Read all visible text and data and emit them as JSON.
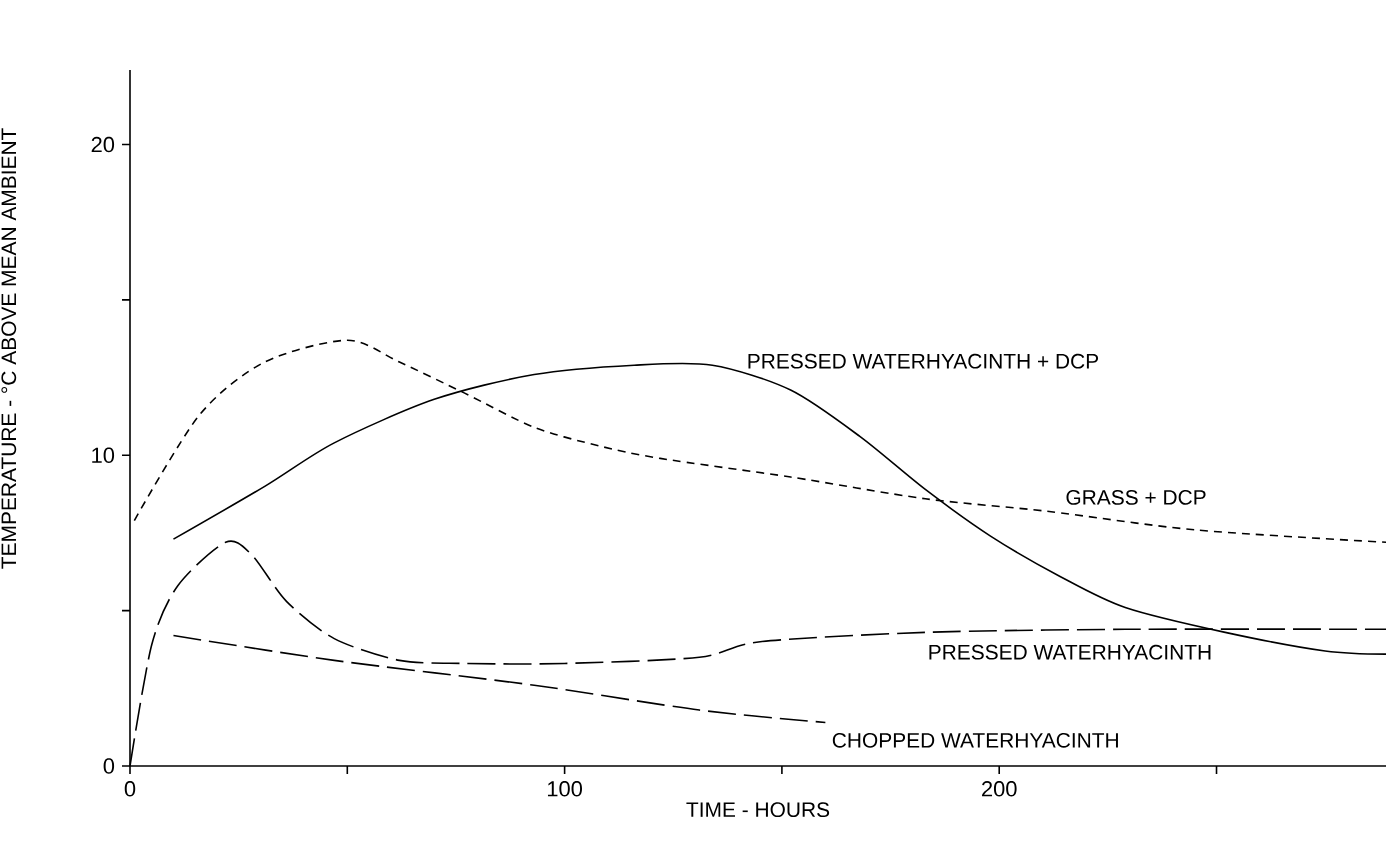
{
  "chart_data": {
    "type": "line",
    "xlabel": "TIME - HOURS",
    "ylabel": "TEMPERATURE - °C ABOVE MEAN AMBIENT",
    "xlim": [
      0,
      289
    ],
    "ylim": [
      0,
      22.4
    ],
    "xticks": [
      0,
      {
        "value": 50,
        "label": null
      },
      100,
      {
        "value": 150,
        "label": null
      },
      200,
      {
        "value": 250,
        "label": null
      }
    ],
    "yticks": [
      0,
      {
        "value": 5,
        "label": null
      },
      10,
      {
        "value": 15,
        "label": null
      },
      20
    ],
    "grid": false,
    "legend": false,
    "marker": "none",
    "series": [
      {
        "name": "GRASS + DCP",
        "color": "#000000",
        "line_style": "dotted",
        "x": [
          1,
          16,
          31,
          50,
          62,
          77,
          93,
          108,
          122,
          152,
          183,
          211,
          245,
          289
        ],
        "values": [
          7.9,
          11.3,
          13.0,
          13.7,
          13.0,
          12.0,
          10.9,
          10.3,
          9.9,
          9.3,
          8.6,
          8.2,
          7.6,
          7.2
        ]
      },
      {
        "name": "PRESSED WATERHYACINTH + DCP",
        "color": "#000000",
        "line_style": "solid",
        "x": [
          10,
          31,
          47,
          70,
          93,
          116,
          134,
          152,
          168,
          183,
          198,
          214,
          229,
          252,
          275,
          289
        ],
        "values": [
          7.3,
          9.0,
          10.4,
          11.8,
          12.6,
          12.9,
          12.9,
          12.1,
          10.6,
          8.9,
          7.4,
          6.1,
          5.1,
          4.3,
          3.7,
          3.6
        ]
      },
      {
        "name": "PRESSED WATERHYACINTH",
        "color": "#000000",
        "line_style": "dashed",
        "x": [
          0,
          5,
          11,
          22,
          28,
          36,
          47,
          62,
          77,
          100,
          131,
          145,
          183,
          229,
          289
        ],
        "values": [
          0,
          3.9,
          5.8,
          7.2,
          6.8,
          5.3,
          4.1,
          3.4,
          3.3,
          3.3,
          3.5,
          4.0,
          4.3,
          4.4,
          4.4
        ]
      },
      {
        "name": "CHOPPED WATERHYACINTH",
        "color": "#000000",
        "line_style": "dashed",
        "x": [
          10,
          47,
          93,
          131,
          160
        ],
        "values": [
          4.2,
          3.4,
          2.6,
          1.8,
          1.4
        ]
      }
    ]
  }
}
